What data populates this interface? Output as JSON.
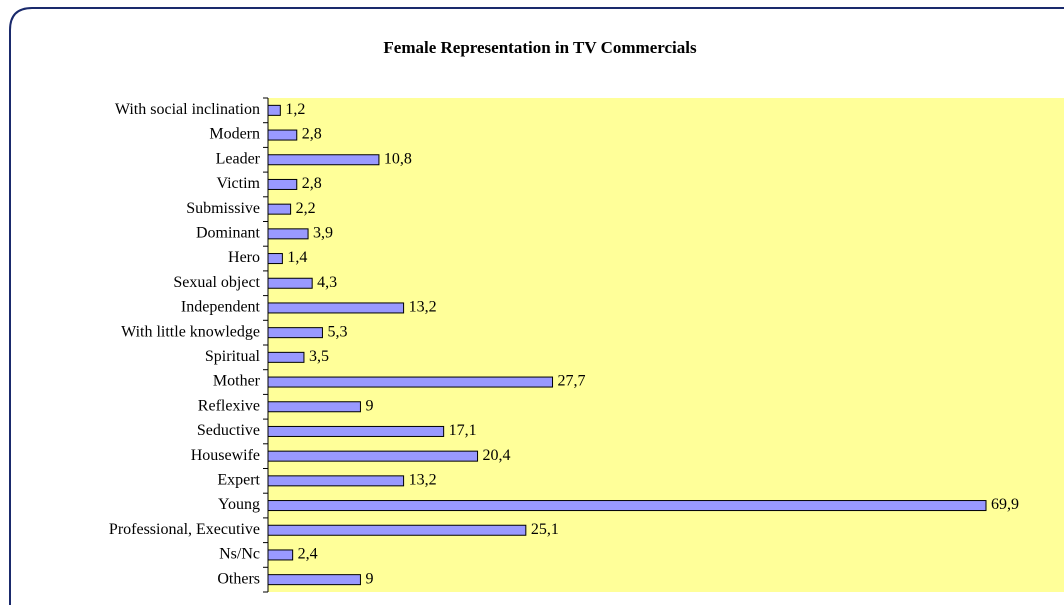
{
  "chart_data": {
    "type": "hbar",
    "title": "Female Representation in TV Commercials",
    "categories": [
      "With social inclination",
      "Modern",
      "Leader",
      "Victim",
      "Submissive",
      "Dominant",
      "Hero",
      "Sexual object",
      "Independent",
      "With little knowledge",
      "Spiritual",
      "Mother",
      "Reflexive",
      "Seductive",
      "Housewife",
      "Expert",
      "Young",
      "Professional, Executive",
      "Ns/Nc",
      "Others"
    ],
    "values": [
      1.2,
      2.8,
      10.8,
      2.8,
      2.2,
      3.9,
      1.4,
      4.3,
      13.2,
      5.3,
      3.5,
      27.7,
      9,
      17.1,
      20.4,
      13.2,
      69.9,
      25.1,
      2.4,
      9
    ],
    "value_labels": [
      "1,2",
      "2,8",
      "10,8",
      "2,8",
      "2,2",
      "3,9",
      "1,4",
      "4,3",
      "13,2",
      "5,3",
      "3,5",
      "27,7",
      "9",
      "17,1",
      "20,4",
      "13,2",
      "69,9",
      "25,1",
      "2,4",
      "9"
    ],
    "color": "#9999ff"
  }
}
